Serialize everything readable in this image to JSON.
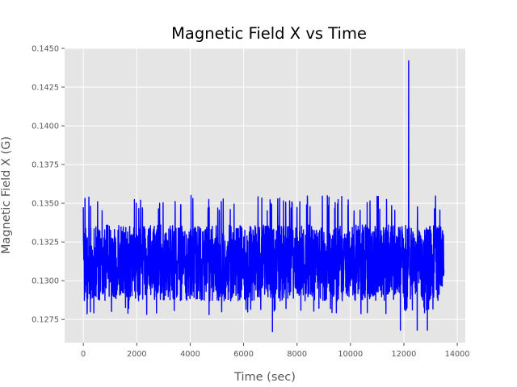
{
  "chart_data": {
    "type": "line",
    "title": "Magnetic Field X vs Time",
    "xlabel": "Time (sec)",
    "ylabel": "Magnetic Field X (G)",
    "xlim": [
      -700,
      14300
    ],
    "ylim": [
      0.126,
      0.145
    ],
    "x_ticks": [
      0,
      2000,
      4000,
      6000,
      8000,
      10000,
      12000,
      14000
    ],
    "x_tick_labels": [
      "0",
      "2000",
      "4000",
      "6000",
      "8000",
      "10000",
      "12000",
      "14000"
    ],
    "y_ticks": [
      0.1275,
      0.13,
      0.1325,
      0.135,
      0.1375,
      0.14,
      0.1425,
      0.145
    ],
    "y_tick_labels": [
      "0.1275",
      "0.1300",
      "0.1325",
      "0.1350",
      "0.1375",
      "0.1400",
      "0.1425",
      "0.1450"
    ],
    "grid": true,
    "style": "ggplot",
    "series": [
      {
        "color": "#0000ff",
        "summary": {
          "x_start": 0,
          "x_end": 13500,
          "typical_min": 0.1287,
          "typical_max": 0.1336,
          "spike_max": {
            "x": 12180,
            "y": 0.1442
          },
          "lows": [
            {
              "x": 7080,
              "y": 0.1267
            },
            {
              "x": 11870,
              "y": 0.1268
            },
            {
              "x": 12880,
              "y": 0.1268
            },
            {
              "x": 12500,
              "y": 0.1268
            }
          ]
        }
      }
    ]
  }
}
